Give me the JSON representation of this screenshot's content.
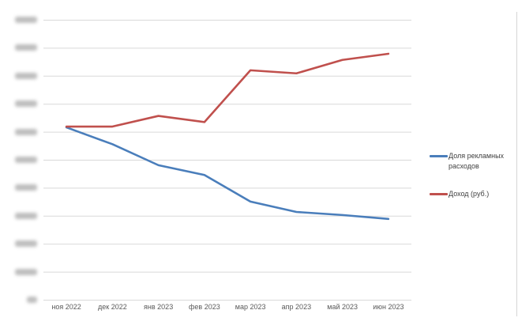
{
  "chart_data": {
    "type": "line",
    "title": "",
    "xlabel": "",
    "ylabel": "",
    "categories": [
      "ноя 2022",
      "дек 2022",
      "янв 2023",
      "фев 2023",
      "мар 2023",
      "апр 2023",
      "май 2023",
      "июн 2023"
    ],
    "series": [
      {
        "name": "Доля рекламных расходов",
        "color": "#4A7EBB",
        "values": [
          6.17,
          5.57,
          4.82,
          4.47,
          3.52,
          3.15,
          3.04,
          2.9
        ]
      },
      {
        "name": "Доход (руб.)",
        "color": "#C0504D",
        "values": [
          6.2,
          6.2,
          6.58,
          6.36,
          8.21,
          8.1,
          8.58,
          8.8
        ]
      }
    ],
    "y_axis": {
      "gridline_count": 11,
      "ylim": [
        0,
        10
      ],
      "tick_labels": "blurred_illegible",
      "note": "values are relative gridline units (0 = bottom gridline, 10 = top); actual y-axis tick labels are blurred in the source image"
    },
    "legend_position": "right",
    "grid": true
  },
  "styles": {
    "gridline_color": "#d9d9d9",
    "axis_label_color": "#595959",
    "legend_text_color": "#404040",
    "background": "#ffffff",
    "frame_border_color": "#d6d6d6",
    "blurred_tick_color": "#a8a8a8"
  }
}
